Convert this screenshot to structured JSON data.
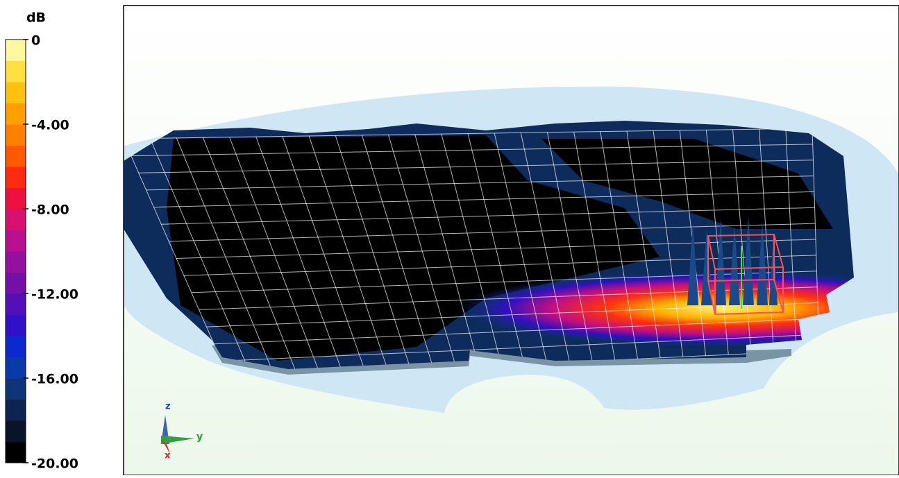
{
  "colorbar": {
    "title": "dB",
    "range": [
      -20,
      0
    ],
    "ticks": [
      0,
      {
        "value": -4,
        "label": "-4.00"
      },
      {
        "value": -8,
        "label": "-8.00"
      },
      {
        "value": -12,
        "label": "-12.00"
      },
      {
        "value": -16,
        "label": "-16.00"
      },
      {
        "value": -20,
        "label": "-20.00"
      }
    ],
    "colors": [
      "#000000",
      "#0a1428",
      "#0c2550",
      "#0d3578",
      "#0a3aa8",
      "#0a2ad0",
      "#3010c8",
      "#5410b8",
      "#7410a8",
      "#9410a0",
      "#b81090",
      "#d81070",
      "#f01040",
      "#ff2a10",
      "#ff5a00",
      "#ff8000",
      "#ffa000",
      "#ffc010",
      "#ffe040",
      "#fff8a0"
    ]
  },
  "axes": {
    "z": "z",
    "y": "y",
    "x": "x"
  }
}
